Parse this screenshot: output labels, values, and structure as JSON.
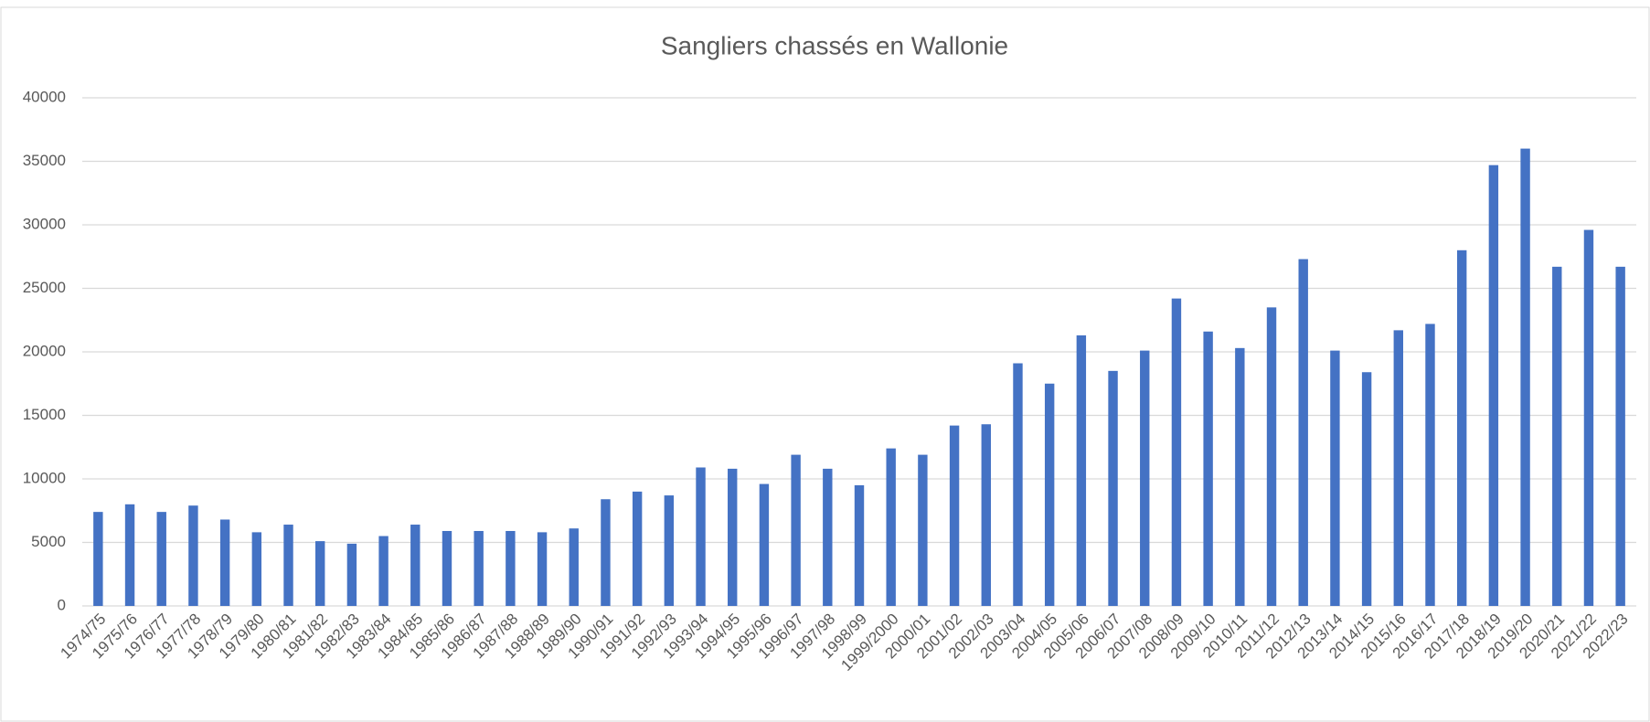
{
  "chart_data": {
    "type": "bar",
    "title": "Sangliers chassés en Wallonie",
    "categories": [
      "1974/75",
      "1975/76",
      "1976/77",
      "1977/78",
      "1978/79",
      "1979/80",
      "1980/81",
      "1981/82",
      "1982/83",
      "1983/84",
      "1984/85",
      "1985/86",
      "1986/87",
      "1987/88",
      "1988/89",
      "1989/90",
      "1990/91",
      "1991/92",
      "1992/93",
      "1993/94",
      "1994/95",
      "1995/96",
      "1996/97",
      "1997/98",
      "1998/99",
      "1999/2000",
      "2000/01",
      "2001/02",
      "2002/03",
      "2003/04",
      "2004/05",
      "2005/06",
      "2006/07",
      "2007/08",
      "2008/09",
      "2009/10",
      "2010/11",
      "2011/12",
      "2012/13",
      "2013/14",
      "2014/15",
      "2015/16",
      "2016/17",
      "2017/18",
      "2018/19",
      "2019/20",
      "2020/21",
      "2021/22",
      "2022/23"
    ],
    "values": [
      7400,
      8000,
      7400,
      7900,
      6800,
      5800,
      6400,
      5100,
      4900,
      5500,
      6400,
      5900,
      5900,
      5900,
      5800,
      6100,
      8400,
      9000,
      8700,
      10900,
      10800,
      9600,
      11900,
      10800,
      9500,
      12400,
      11900,
      14200,
      14300,
      19100,
      17500,
      21300,
      18500,
      20100,
      24200,
      21600,
      20300,
      23500,
      27300,
      20100,
      18400,
      21700,
      22200,
      28000,
      34700,
      36000,
      26700,
      29600,
      26700
    ],
    "color": "#4472c4",
    "ylim": [
      0,
      40000
    ],
    "yticks": [
      0,
      5000,
      10000,
      15000,
      20000,
      25000,
      30000,
      35000,
      40000
    ],
    "grid": true
  }
}
